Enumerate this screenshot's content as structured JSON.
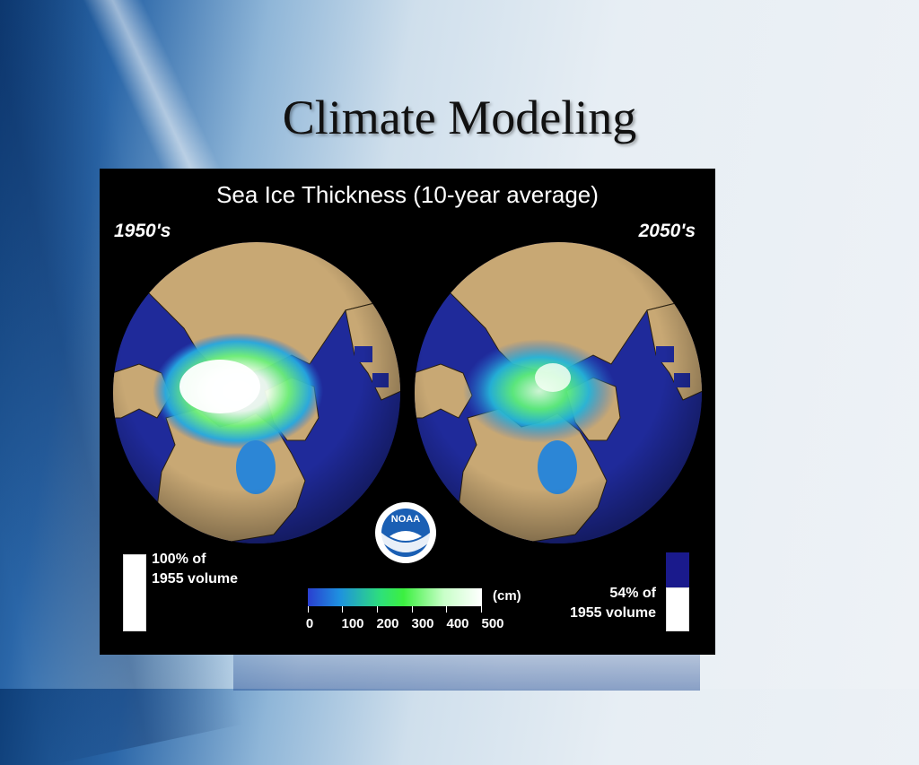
{
  "slide": {
    "title": "Climate Modeling"
  },
  "figure": {
    "title": "Sea Ice Thickness (10-year average)",
    "left_label": "1950's",
    "right_label": "2050's",
    "left_volume_line1": "100% of",
    "left_volume_line2": "1955 volume",
    "right_volume_line1": "54% of",
    "right_volume_line2": "1955 volume",
    "colorbar": {
      "unit": "(cm)",
      "ticks": [
        "0",
        "100",
        "200",
        "300",
        "400",
        "500"
      ]
    },
    "logo_text": "NOAA",
    "icons": [
      "noaa-logo"
    ],
    "colors": {
      "ocean": "#1f2a9a",
      "land": "#c8a874",
      "ice_thick": "#ffffff",
      "ice_mid": "#3cf040",
      "ice_thin": "#1e90e0"
    }
  }
}
